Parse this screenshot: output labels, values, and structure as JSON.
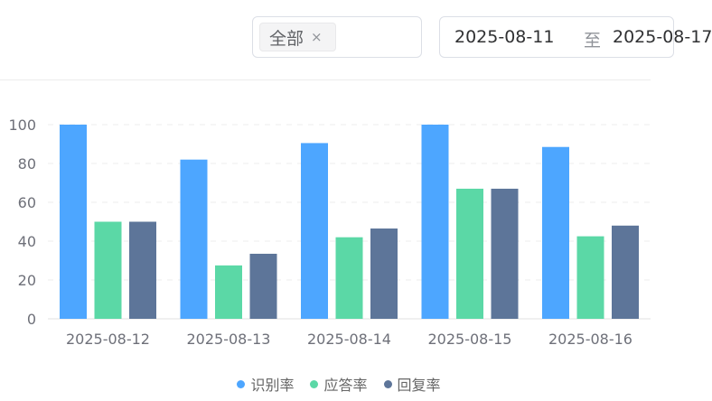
{
  "filter": {
    "tag_label": "全部",
    "tag_close": "×",
    "date_start": "2025-08-11",
    "date_separator": "至",
    "date_end": "2025-08-17"
  },
  "chart_data": {
    "type": "bar",
    "title": "",
    "xlabel": "",
    "ylabel": "",
    "ylim": [
      0,
      100
    ],
    "yticks": [
      0,
      20,
      40,
      60,
      80,
      100
    ],
    "grid": "dashed-horizontal",
    "legend_position": "bottom",
    "categories": [
      "2025-08-12",
      "2025-08-13",
      "2025-08-14",
      "2025-08-15",
      "2025-08-16"
    ],
    "series": [
      {
        "name": "识别率",
        "color": "#4da6ff",
        "values": [
          100,
          82,
          90.5,
          100,
          88.5
        ]
      },
      {
        "name": "应答率",
        "color": "#5bd8a6",
        "values": [
          50,
          27.5,
          42,
          67,
          42.5
        ]
      },
      {
        "name": "回复率",
        "color": "#5d7599",
        "values": [
          50,
          33.5,
          46.5,
          67,
          48
        ]
      }
    ]
  }
}
